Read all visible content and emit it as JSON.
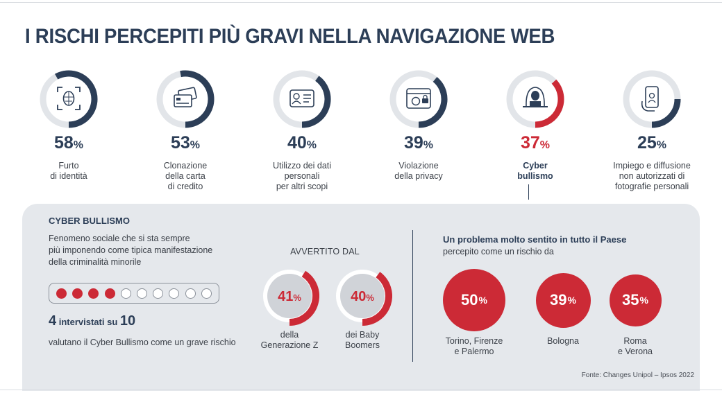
{
  "header": {
    "title": "I RISCHI PERCEPITI PIÙ GRAVI NELLA NAVIGAZIONE WEB"
  },
  "colors": {
    "navy": "#2c3e57",
    "red": "#cc2a36",
    "track": "#e2e5e9",
    "panel": "#e5e8ec"
  },
  "chart_data": [
    {
      "type": "donut",
      "title": "I RISCHI PERCEPITI PIÙ GRAVI NELLA NAVIGAZIONE WEB",
      "unit": "%",
      "items": [
        {
          "value": 58,
          "label_lines": [
            "Furto",
            "di identità"
          ],
          "icon": "face-scan-icon",
          "highlight": false
        },
        {
          "value": 53,
          "label_lines": [
            "Clonazione",
            "della carta",
            "di credito"
          ],
          "icon": "credit-cards-icon",
          "highlight": false
        },
        {
          "value": 40,
          "label_lines": [
            "Utilizzo dei dati",
            "personali",
            "per altri scopi"
          ],
          "icon": "id-card-icon",
          "highlight": false
        },
        {
          "value": 39,
          "label_lines": [
            "Violazione",
            "della privacy"
          ],
          "icon": "privacy-browser-icon",
          "highlight": false
        },
        {
          "value": 37,
          "label_lines": [
            "Cyber",
            "bullismo"
          ],
          "icon": "hooded-hacker-icon",
          "highlight": true
        },
        {
          "value": 25,
          "label_lines": [
            "Impiego e diffusione",
            "non autorizzati di",
            "fotografie personali"
          ],
          "icon": "phone-photo-icon",
          "highlight": false
        }
      ]
    },
    {
      "type": "dot-ratio",
      "value": 4,
      "total": 10
    },
    {
      "type": "donut",
      "title": "AVVERTITO DAL",
      "unit": "%",
      "items": [
        {
          "value": 41,
          "label_lines": [
            "della",
            "Generazione Z"
          ]
        },
        {
          "value": 40,
          "label_lines": [
            "dei Baby",
            "Boomers"
          ]
        }
      ]
    },
    {
      "type": "bubble",
      "title": "Un problema molto sentito in tutto il Paese",
      "unit": "%",
      "items": [
        {
          "value": 50,
          "label_lines": [
            "Torino, Firenze",
            "e Palermo"
          ]
        },
        {
          "value": 39,
          "label_lines": [
            "Bologna"
          ]
        },
        {
          "value": 35,
          "label_lines": [
            "Roma",
            "e Verona"
          ]
        }
      ]
    }
  ],
  "cyberbullismo": {
    "title": "CYBER BULLISMO",
    "description_lines": [
      "Fenomeno sociale che si sta sempre",
      "più imponendo come tipica manifestazione",
      "della criminalità minorile"
    ],
    "stat": {
      "num": "4",
      "mid": " intervistati su ",
      "total": "10"
    },
    "note": "valutano il Cyber Bullismo come un grave rischio"
  },
  "generations": {
    "title": "AVVERTITO DAL"
  },
  "country": {
    "title": "Un problema molto sentito in tutto il Paese",
    "subtitle": "percepito come un rischio da"
  },
  "source": "Fonte: Changes Unipol – Ipsos 2022"
}
